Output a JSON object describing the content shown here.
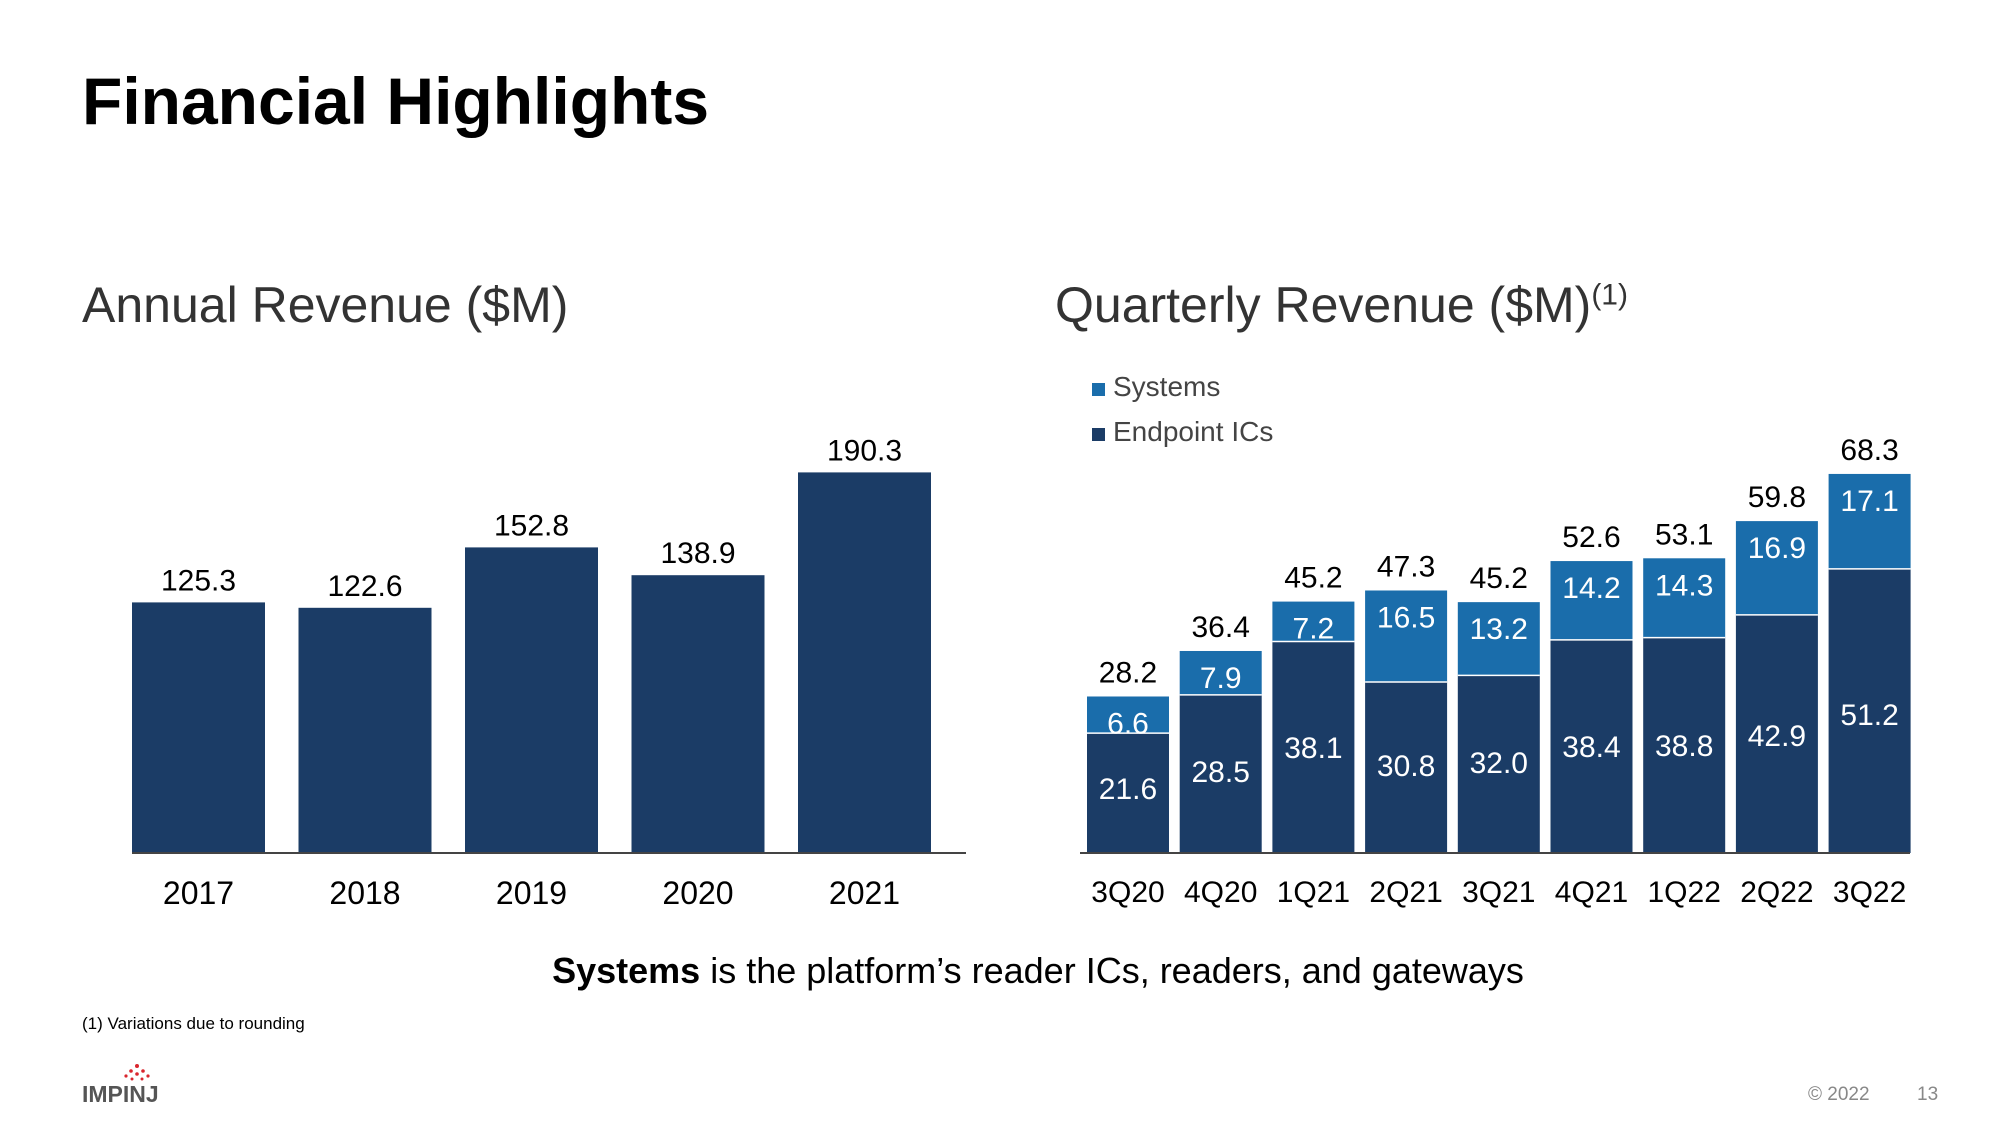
{
  "page": {
    "title": "Financial Highlights",
    "note_bold": "Systems",
    "note_rest": " is the platform’s reader ICs, readers, and gateways",
    "footnote": "(1)  Variations due to rounding",
    "logo_text": "IMPINJ",
    "copyright": "© 2022",
    "page_number": "13"
  },
  "colors": {
    "endpoint_ics": "#1b3c66",
    "systems": "#1a6dab",
    "axis": "#444444",
    "logo_dots": "#d9262e"
  },
  "chart_data": [
    {
      "type": "bar",
      "title": "Annual Revenue ($M)",
      "categories": [
        "2017",
        "2018",
        "2019",
        "2020",
        "2021"
      ],
      "values": [
        125.3,
        122.6,
        152.8,
        138.9,
        190.3
      ],
      "value_labels": [
        "125.3",
        "122.6",
        "152.8",
        "138.9",
        "190.3"
      ],
      "ylim": [
        0,
        200
      ],
      "grid": false
    },
    {
      "type": "bar",
      "stacked": true,
      "title": "Quarterly Revenue ($M)",
      "title_superscript": "(1)",
      "categories": [
        "3Q20",
        "4Q20",
        "1Q21",
        "2Q21",
        "3Q21",
        "4Q21",
        "1Q22",
        "2Q22",
        "3Q22"
      ],
      "series": [
        {
          "name": "Endpoint ICs",
          "values": [
            21.6,
            28.5,
            38.1,
            30.8,
            32.0,
            38.4,
            38.8,
            42.9,
            51.2
          ],
          "labels": [
            "21.6",
            "28.5",
            "38.1",
            "30.8",
            "32.0",
            "38.4",
            "38.8",
            "42.9",
            "51.2"
          ]
        },
        {
          "name": "Systems",
          "values": [
            6.6,
            7.9,
            7.2,
            16.5,
            13.2,
            14.2,
            14.3,
            16.9,
            17.1
          ],
          "labels": [
            "6.6",
            "7.9",
            "7.2",
            "16.5",
            "13.2",
            "14.2",
            "14.3",
            "16.9",
            "17.1"
          ]
        }
      ],
      "totals": [
        28.2,
        36.4,
        45.2,
        47.3,
        45.2,
        52.6,
        53.1,
        59.8,
        68.3
      ],
      "total_labels": [
        "28.2",
        "36.4",
        "45.2",
        "47.3",
        "45.2",
        "52.6",
        "53.1",
        "59.8",
        "68.3"
      ],
      "legend": [
        "Systems",
        "Endpoint ICs"
      ],
      "legend_position": "top-left",
      "ylim": [
        0,
        70
      ],
      "grid": false
    }
  ]
}
